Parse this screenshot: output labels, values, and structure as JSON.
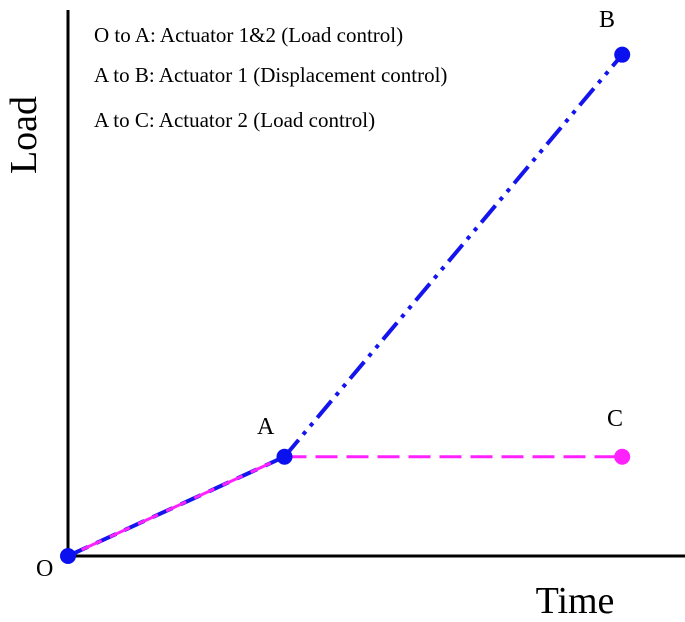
{
  "chart_data": {
    "type": "line",
    "xlabel": "Time",
    "ylabel": "Load",
    "points": [
      {
        "label": "O",
        "x": 0,
        "y": 0
      },
      {
        "label": "A",
        "x": 1,
        "y": 1
      },
      {
        "label": "B",
        "x": 2.56,
        "y": 5.05
      },
      {
        "label": "C",
        "x": 2.56,
        "y": 1
      }
    ],
    "series": [
      {
        "from": "O",
        "to": "A",
        "color": "#1414ee",
        "style": "dash"
      },
      {
        "from": "O",
        "to": "A",
        "color": "#ff22ff",
        "style": "dash"
      },
      {
        "from": "A",
        "to": "B",
        "color": "#1414ee",
        "style": "dash-dot-dot"
      },
      {
        "from": "A",
        "to": "C",
        "color": "#ff22ff",
        "style": "dash"
      }
    ],
    "annotations": [
      "O to A: Actuator 1&2 (Load control)",
      "A to B: Actuator 1 (Displacement control)",
      "A to C: Actuator 2 (Load control)"
    ],
    "xlim": [
      0,
      2.85
    ],
    "ylim": [
      0,
      5.5
    ],
    "grid": false,
    "point_color": "#0a10ee",
    "point_c_color": "#ff22ff"
  }
}
